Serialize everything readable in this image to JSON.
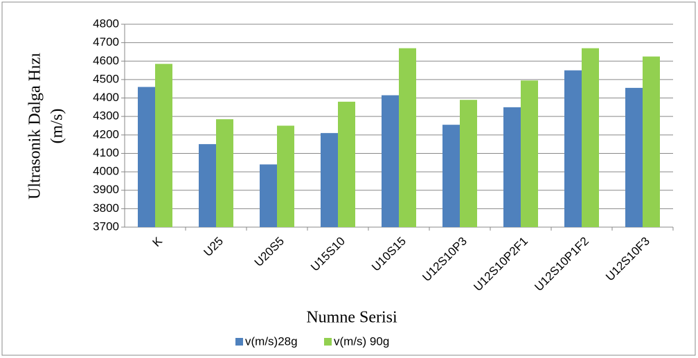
{
  "chart_data": {
    "type": "bar",
    "y_label": [
      "Ultrasonik Dalga Hızı",
      "(m/s)"
    ],
    "x_label": "Numne Serisi",
    "categories": [
      "K",
      "U25",
      "U20S5",
      "U15S10",
      "U10S15",
      "U12S10P3",
      "U12S10P2F1",
      "U12S10P1F2",
      "U12S10F3"
    ],
    "series": [
      {
        "name": "v(m/s)28g",
        "color": "#4f81bd",
        "values": [
          4460,
          4150,
          4040,
          4210,
          4415,
          4255,
          4350,
          4550,
          4455
        ]
      },
      {
        "name": "v(m/s) 90g",
        "color": "#92d050",
        "values": [
          4585,
          4285,
          4250,
          4380,
          4670,
          4390,
          4495,
          4670,
          4625
        ]
      }
    ],
    "ylim": [
      3700,
      4800
    ],
    "yticks": [
      3700,
      3800,
      3900,
      4000,
      4100,
      4200,
      4300,
      4400,
      4500,
      4600,
      4700,
      4800
    ],
    "grid": true,
    "legend": "bottom"
  }
}
